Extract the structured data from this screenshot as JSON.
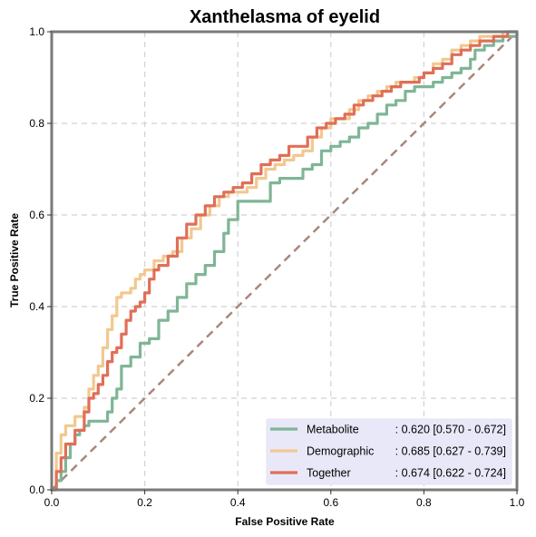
{
  "chart_data": {
    "type": "line",
    "title": "Xanthelasma of eyelid",
    "xlabel": "False Positive Rate",
    "ylabel": "True Positive Rate",
    "xlim": [
      0,
      1
    ],
    "ylim": [
      0,
      1
    ],
    "xticks": [
      "0.0",
      "0.2",
      "0.4",
      "0.6",
      "0.8",
      "1.0"
    ],
    "yticks": [
      "0.0",
      "0.2",
      "0.4",
      "0.6",
      "0.8",
      "1.0"
    ],
    "grid": true,
    "legend_position": "bottom-right",
    "diagonal_color": "#a8887a",
    "series": [
      {
        "name": "Metabolite",
        "legend_value": ": 0.620 [0.570 - 0.672]",
        "color": "#7fb596",
        "points": [
          [
            0.0,
            0.0
          ],
          [
            0.01,
            0.02
          ],
          [
            0.02,
            0.04
          ],
          [
            0.03,
            0.07
          ],
          [
            0.04,
            0.1
          ],
          [
            0.05,
            0.12
          ],
          [
            0.06,
            0.13
          ],
          [
            0.07,
            0.14
          ],
          [
            0.08,
            0.15
          ],
          [
            0.1,
            0.15
          ],
          [
            0.12,
            0.17
          ],
          [
            0.13,
            0.2
          ],
          [
            0.14,
            0.22
          ],
          [
            0.15,
            0.27
          ],
          [
            0.17,
            0.29
          ],
          [
            0.19,
            0.32
          ],
          [
            0.21,
            0.33
          ],
          [
            0.23,
            0.37
          ],
          [
            0.25,
            0.39
          ],
          [
            0.27,
            0.42
          ],
          [
            0.29,
            0.45
          ],
          [
            0.31,
            0.47
          ],
          [
            0.33,
            0.49
          ],
          [
            0.35,
            0.52
          ],
          [
            0.37,
            0.56
          ],
          [
            0.38,
            0.59
          ],
          [
            0.4,
            0.63
          ],
          [
            0.42,
            0.63
          ],
          [
            0.44,
            0.63
          ],
          [
            0.46,
            0.63
          ],
          [
            0.47,
            0.67
          ],
          [
            0.49,
            0.68
          ],
          [
            0.52,
            0.68
          ],
          [
            0.54,
            0.7
          ],
          [
            0.56,
            0.71
          ],
          [
            0.58,
            0.74
          ],
          [
            0.6,
            0.75
          ],
          [
            0.62,
            0.76
          ],
          [
            0.64,
            0.77
          ],
          [
            0.66,
            0.79
          ],
          [
            0.68,
            0.8
          ],
          [
            0.7,
            0.82
          ],
          [
            0.72,
            0.84
          ],
          [
            0.74,
            0.85
          ],
          [
            0.76,
            0.87
          ],
          [
            0.78,
            0.88
          ],
          [
            0.8,
            0.88
          ],
          [
            0.82,
            0.89
          ],
          [
            0.84,
            0.9
          ],
          [
            0.86,
            0.91
          ],
          [
            0.88,
            0.92
          ],
          [
            0.9,
            0.94
          ],
          [
            0.91,
            0.96
          ],
          [
            0.93,
            0.97
          ],
          [
            0.95,
            0.98
          ],
          [
            0.97,
            0.99
          ],
          [
            1.0,
            1.0
          ]
        ]
      },
      {
        "name": "Demographic",
        "legend_value": ": 0.685 [0.627 - 0.739]",
        "color": "#f2c88f",
        "points": [
          [
            0.0,
            0.0
          ],
          [
            0.01,
            0.08
          ],
          [
            0.02,
            0.12
          ],
          [
            0.03,
            0.14
          ],
          [
            0.05,
            0.16
          ],
          [
            0.07,
            0.18
          ],
          [
            0.08,
            0.22
          ],
          [
            0.09,
            0.25
          ],
          [
            0.1,
            0.27
          ],
          [
            0.11,
            0.31
          ],
          [
            0.12,
            0.35
          ],
          [
            0.13,
            0.38
          ],
          [
            0.14,
            0.42
          ],
          [
            0.15,
            0.43
          ],
          [
            0.17,
            0.44
          ],
          [
            0.18,
            0.46
          ],
          [
            0.19,
            0.47
          ],
          [
            0.2,
            0.48
          ],
          [
            0.22,
            0.5
          ],
          [
            0.24,
            0.51
          ],
          [
            0.26,
            0.52
          ],
          [
            0.28,
            0.55
          ],
          [
            0.3,
            0.57
          ],
          [
            0.32,
            0.6
          ],
          [
            0.34,
            0.62
          ],
          [
            0.36,
            0.64
          ],
          [
            0.38,
            0.65
          ],
          [
            0.4,
            0.65
          ],
          [
            0.42,
            0.66
          ],
          [
            0.44,
            0.68
          ],
          [
            0.46,
            0.7
          ],
          [
            0.48,
            0.71
          ],
          [
            0.5,
            0.72
          ],
          [
            0.52,
            0.73
          ],
          [
            0.54,
            0.74
          ],
          [
            0.56,
            0.77
          ],
          [
            0.58,
            0.79
          ],
          [
            0.6,
            0.81
          ],
          [
            0.62,
            0.81
          ],
          [
            0.64,
            0.83
          ],
          [
            0.66,
            0.85
          ],
          [
            0.68,
            0.86
          ],
          [
            0.7,
            0.87
          ],
          [
            0.72,
            0.88
          ],
          [
            0.74,
            0.89
          ],
          [
            0.76,
            0.89
          ],
          [
            0.78,
            0.9
          ],
          [
            0.8,
            0.91
          ],
          [
            0.82,
            0.93
          ],
          [
            0.84,
            0.94
          ],
          [
            0.86,
            0.96
          ],
          [
            0.88,
            0.97
          ],
          [
            0.9,
            0.98
          ],
          [
            0.92,
            0.99
          ],
          [
            0.95,
            0.99
          ],
          [
            0.97,
            1.0
          ],
          [
            1.0,
            1.0
          ]
        ]
      },
      {
        "name": "Together",
        "legend_value": ": 0.674 [0.622 - 0.724]",
        "color": "#e06f57",
        "points": [
          [
            0.0,
            0.0
          ],
          [
            0.01,
            0.04
          ],
          [
            0.02,
            0.07
          ],
          [
            0.03,
            0.1
          ],
          [
            0.05,
            0.13
          ],
          [
            0.07,
            0.17
          ],
          [
            0.08,
            0.2
          ],
          [
            0.09,
            0.21
          ],
          [
            0.1,
            0.23
          ],
          [
            0.11,
            0.25
          ],
          [
            0.12,
            0.28
          ],
          [
            0.13,
            0.3
          ],
          [
            0.14,
            0.31
          ],
          [
            0.15,
            0.34
          ],
          [
            0.16,
            0.37
          ],
          [
            0.17,
            0.39
          ],
          [
            0.18,
            0.4
          ],
          [
            0.19,
            0.41
          ],
          [
            0.2,
            0.43
          ],
          [
            0.21,
            0.46
          ],
          [
            0.22,
            0.48
          ],
          [
            0.23,
            0.49
          ],
          [
            0.25,
            0.51
          ],
          [
            0.27,
            0.55
          ],
          [
            0.29,
            0.58
          ],
          [
            0.31,
            0.6
          ],
          [
            0.33,
            0.62
          ],
          [
            0.35,
            0.64
          ],
          [
            0.37,
            0.65
          ],
          [
            0.39,
            0.66
          ],
          [
            0.41,
            0.67
          ],
          [
            0.43,
            0.69
          ],
          [
            0.45,
            0.71
          ],
          [
            0.47,
            0.72
          ],
          [
            0.49,
            0.73
          ],
          [
            0.51,
            0.75
          ],
          [
            0.53,
            0.75
          ],
          [
            0.55,
            0.77
          ],
          [
            0.57,
            0.79
          ],
          [
            0.59,
            0.8
          ],
          [
            0.61,
            0.81
          ],
          [
            0.63,
            0.82
          ],
          [
            0.65,
            0.84
          ],
          [
            0.67,
            0.85
          ],
          [
            0.69,
            0.86
          ],
          [
            0.71,
            0.87
          ],
          [
            0.73,
            0.88
          ],
          [
            0.75,
            0.89
          ],
          [
            0.77,
            0.89
          ],
          [
            0.79,
            0.9
          ],
          [
            0.8,
            0.91
          ],
          [
            0.82,
            0.92
          ],
          [
            0.84,
            0.93
          ],
          [
            0.86,
            0.95
          ],
          [
            0.88,
            0.96
          ],
          [
            0.9,
            0.97
          ],
          [
            0.92,
            0.98
          ],
          [
            0.95,
            0.99
          ],
          [
            0.98,
            1.0
          ],
          [
            1.0,
            1.0
          ]
        ]
      }
    ]
  }
}
